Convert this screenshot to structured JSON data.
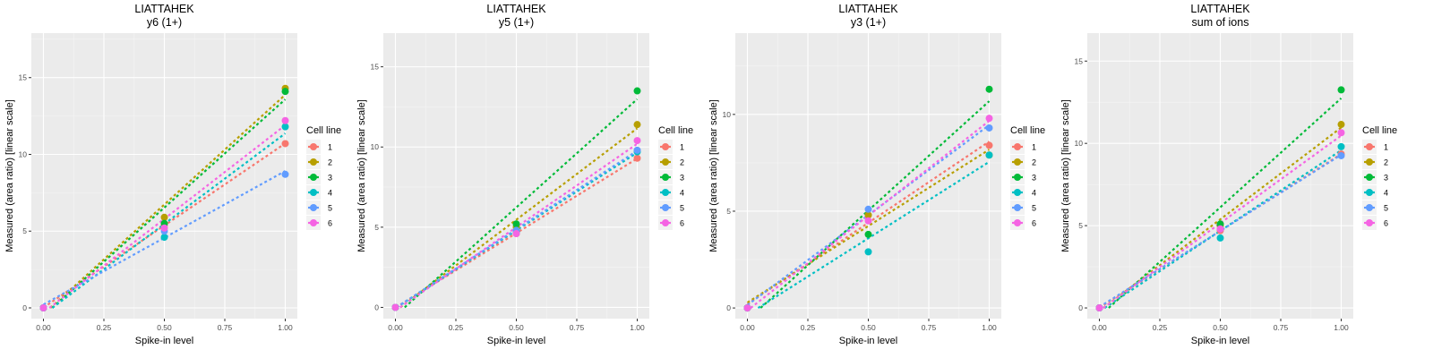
{
  "legend_title": "Cell line",
  "series_names": [
    "1",
    "2",
    "3",
    "4",
    "5",
    "6"
  ],
  "colors": [
    "#F8766D",
    "#B79F00",
    "#00BA38",
    "#00BFC4",
    "#619CFF",
    "#F564E3"
  ],
  "chart_data": [
    {
      "type": "scatter",
      "title": "LIATTAHEK",
      "subtitle": "y6 (1+)",
      "xlabel": "Spike-in level",
      "ylabel": "Measured (area ratio) [linear scale]",
      "x": [
        0,
        0.5,
        1
      ],
      "xlim": [
        -0.05,
        1.05
      ],
      "ylim": [
        -0.7,
        17.9
      ],
      "xticks": [
        "0.00",
        "0.25",
        "0.50",
        "0.75",
        "1.00"
      ],
      "yticks": [
        0,
        5,
        10,
        15
      ],
      "series": [
        {
          "name": "1",
          "values": [
            0,
            5.4,
            10.7
          ]
        },
        {
          "name": "2",
          "values": [
            0,
            5.9,
            14.3
          ]
        },
        {
          "name": "3",
          "values": [
            0,
            5.5,
            14.1
          ]
        },
        {
          "name": "4",
          "values": [
            0,
            4.6,
            11.8
          ]
        },
        {
          "name": "5",
          "values": [
            0,
            5.0,
            8.7
          ]
        },
        {
          "name": "6",
          "values": [
            0,
            5.2,
            12.2
          ]
        }
      ]
    },
    {
      "type": "scatter",
      "title": "LIATTAHEK",
      "subtitle": "y5 (1+)",
      "xlabel": "Spike-in level",
      "ylabel": "Measured (area ratio) [linear scale]",
      "x": [
        0,
        0.5,
        1
      ],
      "xlim": [
        -0.05,
        1.05
      ],
      "ylim": [
        -0.7,
        17.1
      ],
      "xticks": [
        "0.00",
        "0.25",
        "0.50",
        "0.75",
        "1.00"
      ],
      "yticks": [
        0,
        5,
        10,
        15
      ],
      "series": [
        {
          "name": "1",
          "values": [
            0,
            4.6,
            9.3
          ]
        },
        {
          "name": "2",
          "values": [
            0,
            5.0,
            11.4
          ]
        },
        {
          "name": "3",
          "values": [
            0,
            5.2,
            13.5
          ]
        },
        {
          "name": "4",
          "values": [
            0,
            4.7,
            9.7
          ]
        },
        {
          "name": "5",
          "values": [
            0,
            4.8,
            9.8
          ]
        },
        {
          "name": "6",
          "values": [
            0,
            4.6,
            10.4
          ]
        }
      ]
    },
    {
      "type": "scatter",
      "title": "LIATTAHEK",
      "subtitle": "y3 (1+)",
      "xlabel": "Spike-in level",
      "ylabel": "Measured (area ratio) [linear scale]",
      "x": [
        0,
        0.5,
        1
      ],
      "xlim": [
        -0.05,
        1.05
      ],
      "ylim": [
        -0.55,
        14.2
      ],
      "xticks": [
        "0.00",
        "0.25",
        "0.50",
        "0.75",
        "1.00"
      ],
      "yticks": [
        0,
        5,
        10
      ],
      "series": [
        {
          "name": "1",
          "values": [
            0,
            4.8,
            8.4
          ]
        },
        {
          "name": "2",
          "values": [
            0,
            4.8,
            7.9
          ]
        },
        {
          "name": "3",
          "values": [
            0,
            3.8,
            11.3
          ]
        },
        {
          "name": "4",
          "values": [
            0,
            2.9,
            7.9
          ]
        },
        {
          "name": "5",
          "values": [
            0,
            5.1,
            9.3
          ]
        },
        {
          "name": "6",
          "values": [
            0,
            4.5,
            9.8
          ]
        }
      ]
    },
    {
      "type": "scatter",
      "title": "LIATTAHEK",
      "subtitle": "sum of ions",
      "xlabel": "Spike-in level",
      "ylabel": "Measured (area ratio) [linear scale]",
      "x": [
        0,
        0.5,
        1
      ],
      "xlim": [
        -0.05,
        1.05
      ],
      "ylim": [
        -0.65,
        16.7
      ],
      "xticks": [
        "0.00",
        "0.25",
        "0.50",
        "0.75",
        "1.00"
      ],
      "yticks": [
        0,
        5,
        10,
        15
      ],
      "series": [
        {
          "name": "1",
          "values": [
            0,
            4.7,
            9.35
          ]
        },
        {
          "name": "2",
          "values": [
            0,
            5.0,
            11.15
          ]
        },
        {
          "name": "3",
          "values": [
            0,
            5.1,
            13.25
          ]
        },
        {
          "name": "4",
          "values": [
            0,
            4.25,
            9.8
          ]
        },
        {
          "name": "5",
          "values": [
            0,
            4.8,
            9.25
          ]
        },
        {
          "name": "6",
          "values": [
            0,
            4.8,
            10.65
          ]
        }
      ]
    }
  ]
}
